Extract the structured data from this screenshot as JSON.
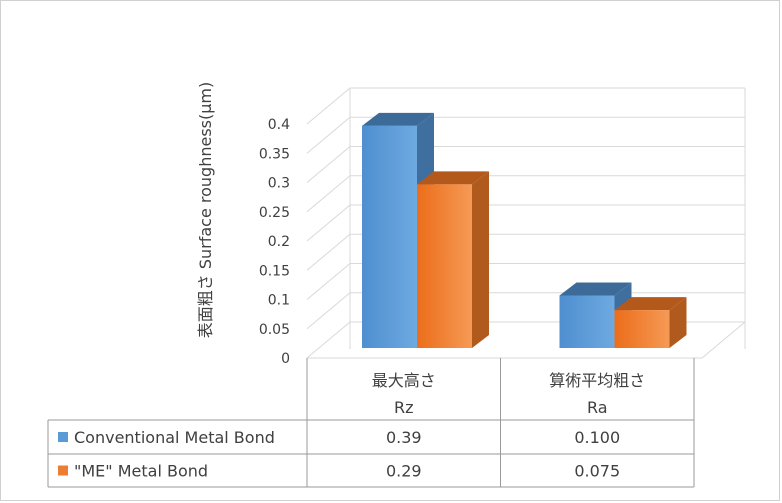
{
  "chart_data": {
    "type": "bar",
    "title": "",
    "ylabel": "表面粗さ Surface roughness(µm)",
    "xlabel": "",
    "ylim": [
      0,
      0.4
    ],
    "y_ticks": [
      "0",
      "0.05",
      "0.1",
      "0.15",
      "0.2",
      "0.25",
      "0.3",
      "0.35",
      "0.4"
    ],
    "categories": [
      {
        "name": "最大高さ",
        "sub": "Rz"
      },
      {
        "name": "算術平均粗さ",
        "sub": "Ra"
      }
    ],
    "series": [
      {
        "name": "Conventional Metal Bond",
        "values": [
          0.39,
          0.1
        ],
        "labels": [
          "0.39",
          "0.100"
        ],
        "color": "#5b9bd5"
      },
      {
        "name": "\"ME\" Metal Bond",
        "values": [
          0.29,
          0.075
        ],
        "labels": [
          "0.29",
          "0.075"
        ],
        "color": "#ed7d31"
      }
    ],
    "grid": true,
    "style": "3d-column",
    "legend": "data-table"
  }
}
